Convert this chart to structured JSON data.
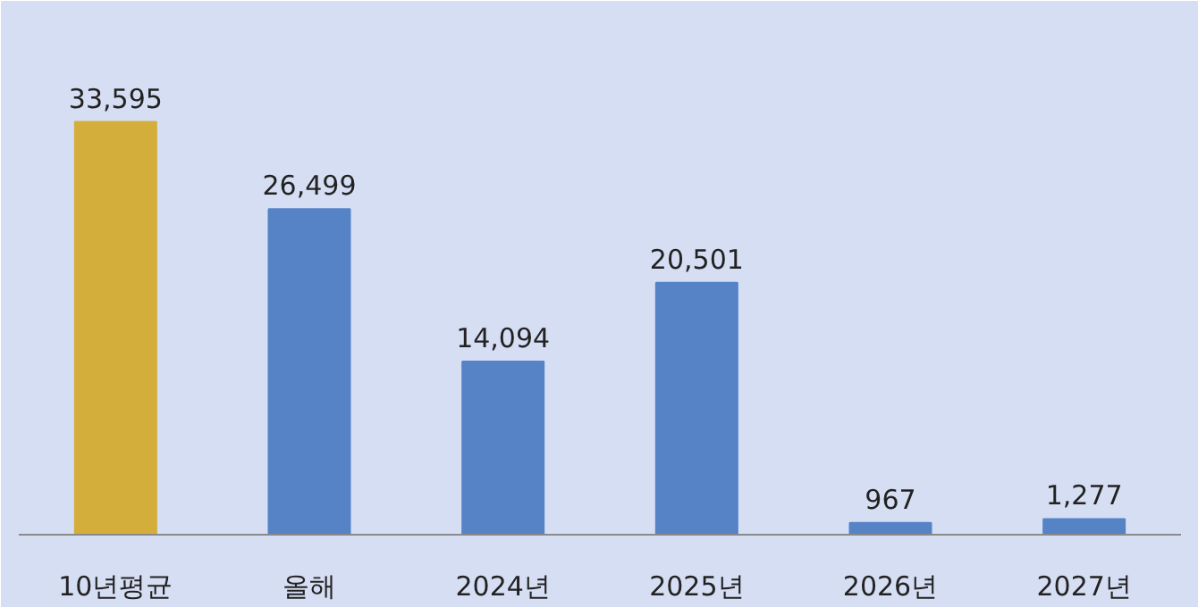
{
  "chart_data": {
    "type": "bar",
    "categories": [
      "10년평균",
      "올해",
      "2024년",
      "2025년",
      "2026년",
      "2027년"
    ],
    "values": [
      33595,
      26499,
      14094,
      20501,
      967,
      1277
    ],
    "colors": [
      "#d4ae3a",
      "#5583c6",
      "#5583c6",
      "#5583c6",
      "#5583c6",
      "#5583c6"
    ],
    "value_labels": [
      "33,595",
      "26,499",
      "14,094",
      "20,501",
      "967",
      "1,277"
    ],
    "data_labels": true
  }
}
